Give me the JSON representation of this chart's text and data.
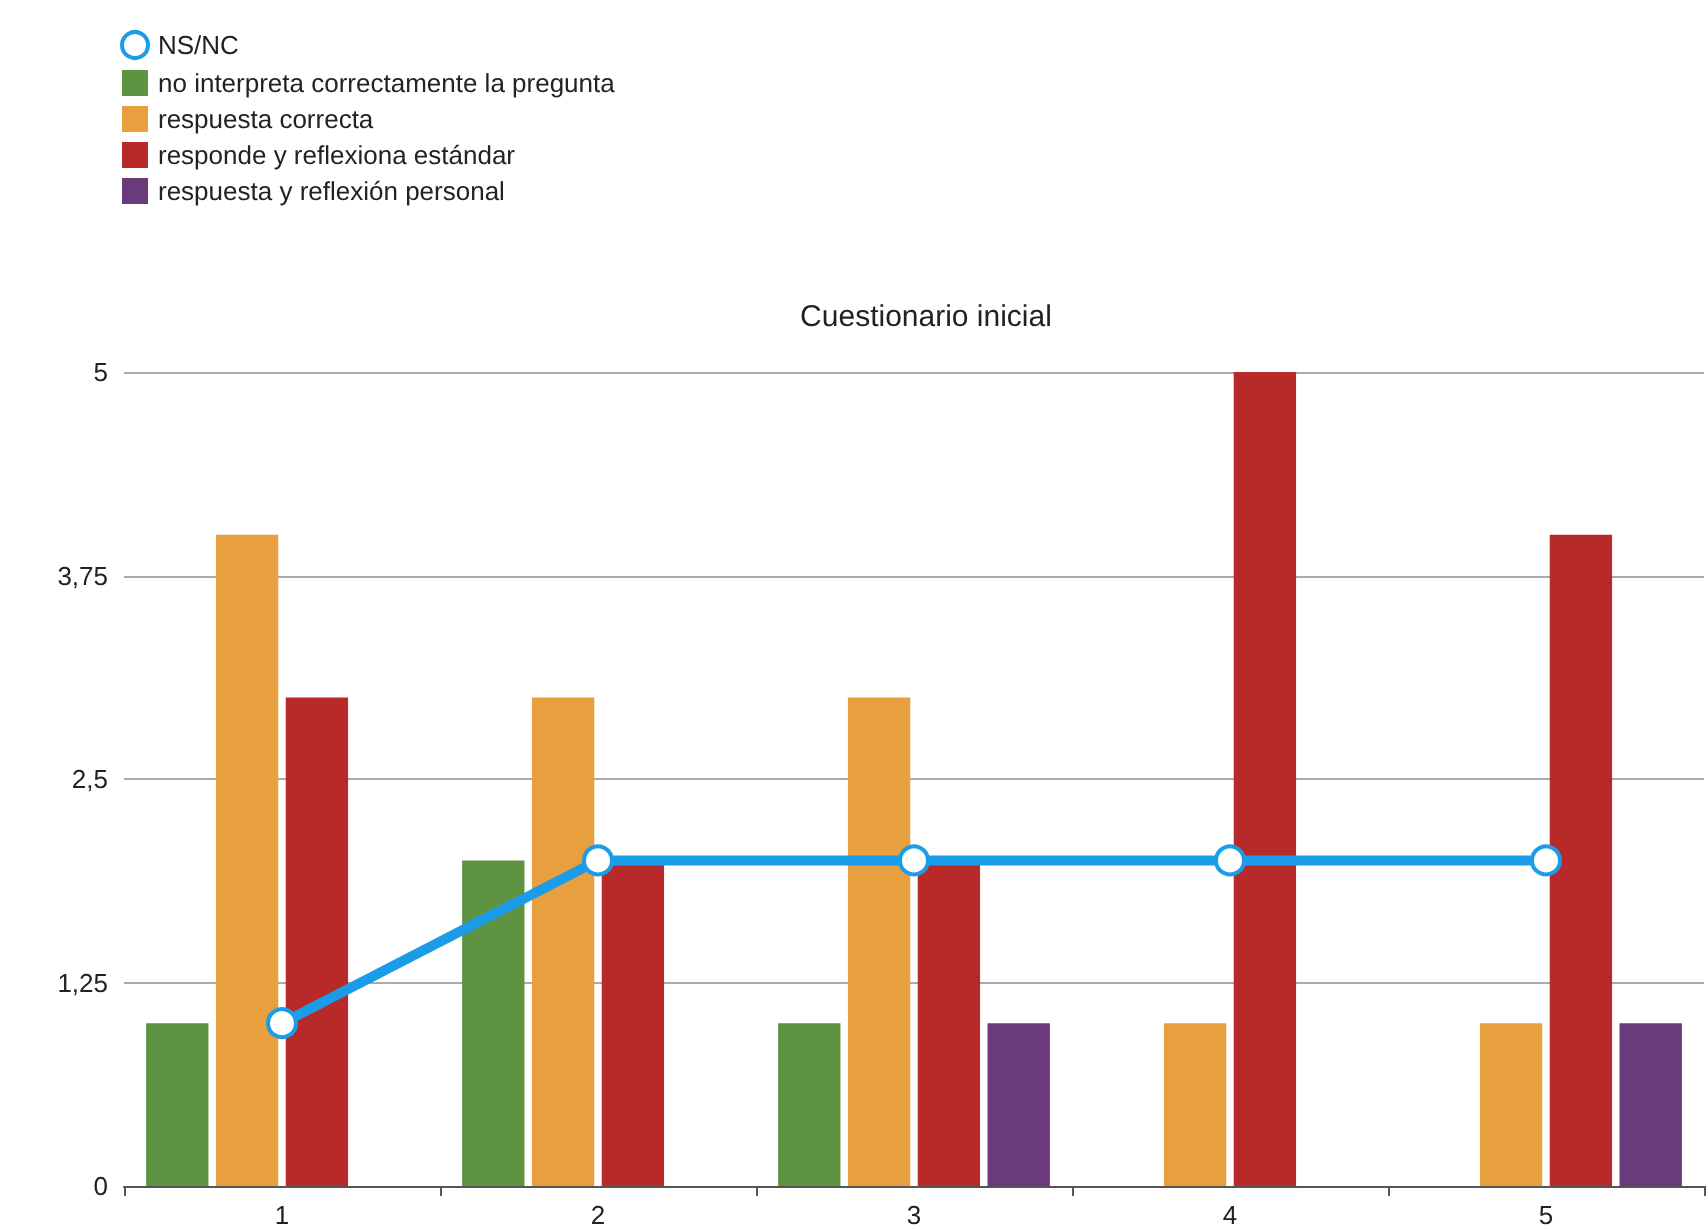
{
  "chart_data": {
    "type": "bar",
    "title": "Cuestionario inicial",
    "categories": [
      "1",
      "2",
      "3",
      "4",
      "5"
    ],
    "series": [
      {
        "name": "NS/NC",
        "type": "line",
        "color": "#1b9ce8",
        "values": [
          1,
          2,
          2,
          2,
          2
        ]
      },
      {
        "name": "no interpreta correctamente la pregunta",
        "color": "#5e9441",
        "values": [
          1,
          2,
          1,
          0,
          0
        ]
      },
      {
        "name": "respuesta correcta",
        "color": "#e8a03e",
        "values": [
          4,
          3,
          3,
          1,
          1
        ]
      },
      {
        "name": "responde y reflexiona estándar",
        "color": "#b82a2a",
        "values": [
          3,
          2,
          2,
          5,
          4
        ]
      },
      {
        "name": "respuesta y reflexión personal",
        "color": "#6b3a7a",
        "values": [
          0,
          0,
          1,
          0,
          1
        ]
      }
    ],
    "ylim": [
      0,
      5
    ],
    "yticks": [
      0,
      {
        "value": 1.25,
        "label": "1,25"
      },
      {
        "value": 2.5,
        "label": "2,5"
      },
      {
        "value": 3.75,
        "label": "3,75"
      },
      5
    ],
    "grid": "y",
    "legend": "top left",
    "marker": "circle"
  }
}
